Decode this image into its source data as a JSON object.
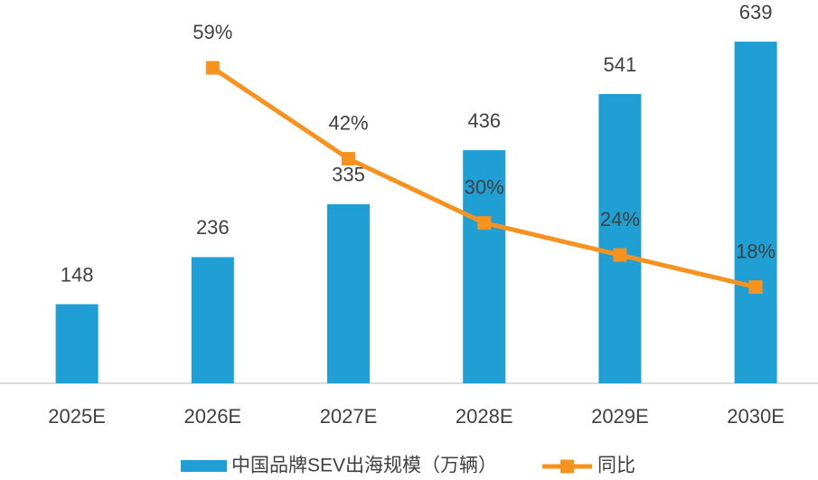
{
  "chart_data": {
    "type": "bar",
    "categories": [
      "2025E",
      "2026E",
      "2027E",
      "2028E",
      "2029E",
      "2030E"
    ],
    "series": [
      {
        "name": "中国品牌SEV出海规模（万辆）",
        "type": "bar",
        "color": "#1f9fd4",
        "values": [
          148,
          236,
          335,
          436,
          541,
          639
        ]
      },
      {
        "name": "同比",
        "type": "line",
        "axis": "y2",
        "color": "#f7921e",
        "values": [
          null,
          59,
          42,
          30,
          24,
          18
        ],
        "value_labels": [
          null,
          "59%",
          "42%",
          "30%",
          "24%",
          "18%"
        ]
      }
    ],
    "ylim": [
      0,
      700
    ],
    "y2lim": [
      0,
      70
    ],
    "grid": false,
    "legend": "bottom"
  }
}
